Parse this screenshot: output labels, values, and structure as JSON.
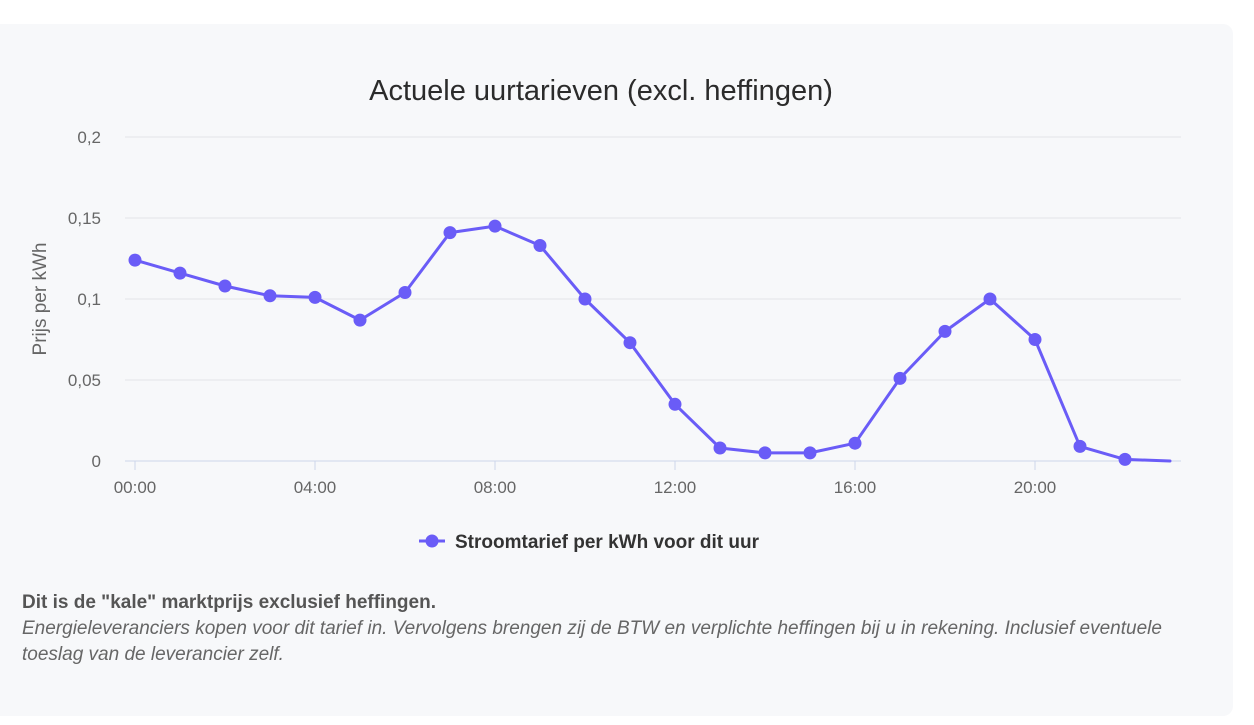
{
  "chart_data": {
    "type": "line",
    "title": "Actuele uurtarieven (excl. heffingen)",
    "ylabel": "Prijs per kWh",
    "xlabel": "",
    "ylim": [
      0,
      0.2
    ],
    "yticks": [
      {
        "value": 0,
        "label": "0"
      },
      {
        "value": 0.05,
        "label": "0,05"
      },
      {
        "value": 0.1,
        "label": "0,1"
      },
      {
        "value": 0.15,
        "label": "0,15"
      },
      {
        "value": 0.2,
        "label": "0,2"
      }
    ],
    "xticks": [
      {
        "hour": 0,
        "label": "00:00"
      },
      {
        "hour": 4,
        "label": "04:00"
      },
      {
        "hour": 8,
        "label": "08:00"
      },
      {
        "hour": 12,
        "label": "12:00"
      },
      {
        "hour": 16,
        "label": "16:00"
      },
      {
        "hour": 20,
        "label": "20:00"
      }
    ],
    "legend_position": "bottom-center",
    "grid": true,
    "series": [
      {
        "name": "Stroomtarief per kWh voor dit uur",
        "color": "#6a5cf7",
        "x": [
          0,
          1,
          2,
          3,
          4,
          5,
          6,
          7,
          8,
          9,
          10,
          11,
          12,
          13,
          14,
          15,
          16,
          17,
          18,
          19,
          20,
          21,
          22,
          23
        ],
        "values": [
          0.124,
          0.116,
          0.108,
          0.102,
          0.101,
          0.087,
          0.104,
          0.141,
          0.145,
          0.133,
          0.1,
          0.073,
          0.035,
          0.008,
          0.005,
          0.005,
          0.011,
          0.051,
          0.08,
          0.1,
          0.075,
          0.009,
          0.001,
          0.0
        ]
      }
    ]
  },
  "note": {
    "heading": "Dit is de \"kale\" marktprijs exclusief heffingen.",
    "body": "Energieleveranciers kopen voor dit tarief in. Vervolgens brengen zij de BTW en verplichte heffingen bij u in rekening. Inclusief eventuele toeslag van de leverancier zelf."
  }
}
